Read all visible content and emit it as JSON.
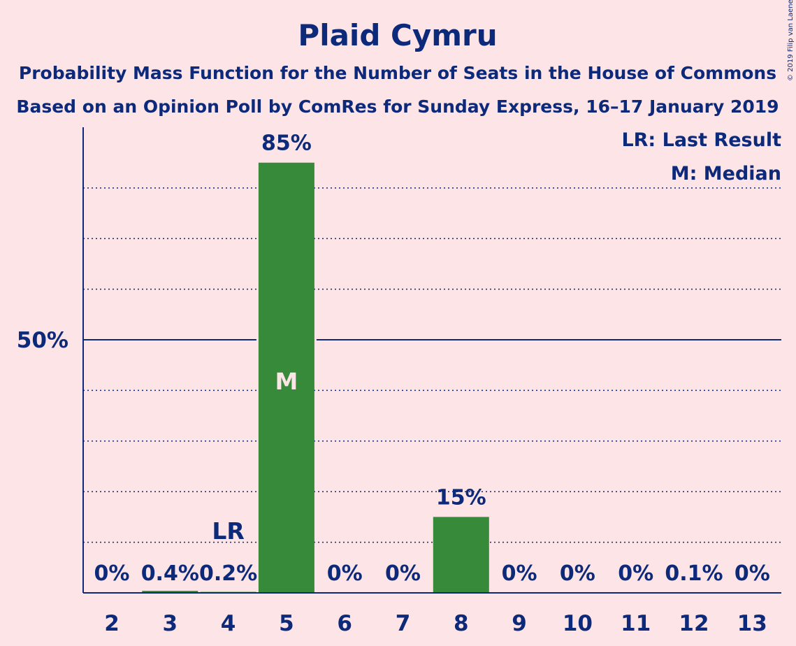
{
  "chart_data": {
    "type": "bar",
    "title": "Plaid Cymru",
    "subtitle_1": "Probability Mass Function for the Number of Seats in the House of Commons",
    "subtitle_2": "Based on an Opinion Poll by ComRes for Sunday Express, 16–17 January 2019",
    "copyright": "© 2019 Filip van Laenen",
    "legend": {
      "last_result": "LR: Last Result",
      "median": "M: Median",
      "placement": "top-right"
    },
    "categories": [
      "2",
      "3",
      "4",
      "5",
      "6",
      "7",
      "8",
      "9",
      "10",
      "11",
      "12",
      "13"
    ],
    "values": [
      0,
      0.4,
      0.2,
      85,
      0,
      0,
      15,
      0,
      0,
      0,
      0.1,
      0
    ],
    "value_labels": [
      "0%",
      "0.4%",
      "0.2%",
      "85%",
      "0%",
      "0%",
      "15%",
      "0%",
      "0%",
      "0%",
      "0.1%",
      "0%"
    ],
    "last_result_category": "4",
    "last_result_label": "LR",
    "median_category": "5",
    "median_label": "M",
    "ylim": [
      0,
      92
    ],
    "y_tick_label": {
      "value": 50,
      "label": "50%"
    },
    "gridlines": [
      10,
      20,
      30,
      40,
      60,
      70,
      80
    ],
    "bar_color": "#368a3a",
    "axis_color": "#0d2a7a",
    "background_color": "#fde4e6"
  }
}
